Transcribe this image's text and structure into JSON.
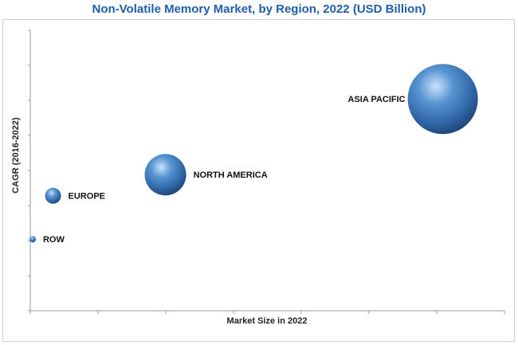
{
  "chart_data": {
    "type": "bubble",
    "title": "Non-Volatile Memory Market, by Region, 2022 (USD Billion)",
    "xlabel": "Market Size in 2022",
    "ylabel": "CAGR (2016-2022)",
    "grid": false,
    "legend": "none",
    "series": [
      {
        "name": "ASIA PACIFIC",
        "x": 87.0,
        "y": 75.5,
        "size": 44
      },
      {
        "name": "NORTH AMERICA",
        "x": 28.5,
        "y": 48.5,
        "size": 26
      },
      {
        "name": "EUROPE",
        "x": 4.8,
        "y": 41.0,
        "size": 10
      },
      {
        "name": "ROW",
        "x": 0.5,
        "y": 25.5,
        "size": 4
      }
    ],
    "xlim": [
      0,
      100
    ],
    "ylim": [
      0,
      100
    ],
    "bubble_color": "#3a72b5"
  }
}
